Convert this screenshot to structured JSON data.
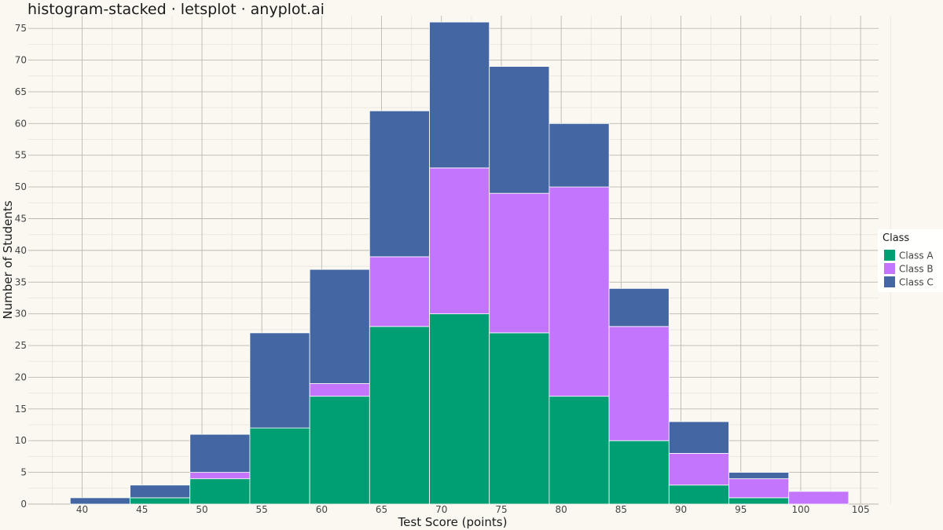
{
  "title": "histogram-stacked · letsplot · anyplot.ai",
  "chart_data": {
    "type": "bar",
    "stacked": true,
    "histogram": true,
    "bin_width": 5,
    "bin_starts": [
      39,
      44,
      49,
      54,
      59,
      64,
      69,
      74,
      79,
      84,
      89,
      94,
      99
    ],
    "series": [
      {
        "name": "Class A",
        "color": "#009E73",
        "values": [
          0,
          1,
          4,
          12,
          17,
          28,
          30,
          27,
          17,
          10,
          3,
          1,
          0
        ]
      },
      {
        "name": "Class B",
        "color": "#C475FD",
        "values": [
          0,
          0,
          1,
          0,
          2,
          11,
          23,
          22,
          33,
          18,
          5,
          3,
          2
        ]
      },
      {
        "name": "Class C",
        "color": "#4467A3",
        "values": [
          1,
          2,
          6,
          15,
          18,
          23,
          23,
          20,
          10,
          6,
          5,
          1,
          0
        ]
      }
    ],
    "xlabel": "Test Score (points)",
    "ylabel": "Number of Students",
    "xlim": [
      35.5,
      106.5
    ],
    "ylim": [
      0,
      77
    ],
    "x_ticks": [
      40,
      45,
      50,
      55,
      60,
      65,
      70,
      75,
      80,
      85,
      90,
      95,
      100,
      105
    ],
    "y_ticks": [
      0,
      5,
      10,
      15,
      20,
      25,
      30,
      35,
      40,
      45,
      50,
      55,
      60,
      65,
      70,
      75
    ],
    "grid": true,
    "legend": {
      "title": "Class",
      "position": "right",
      "entries": [
        "Class A",
        "Class B",
        "Class C"
      ]
    }
  }
}
